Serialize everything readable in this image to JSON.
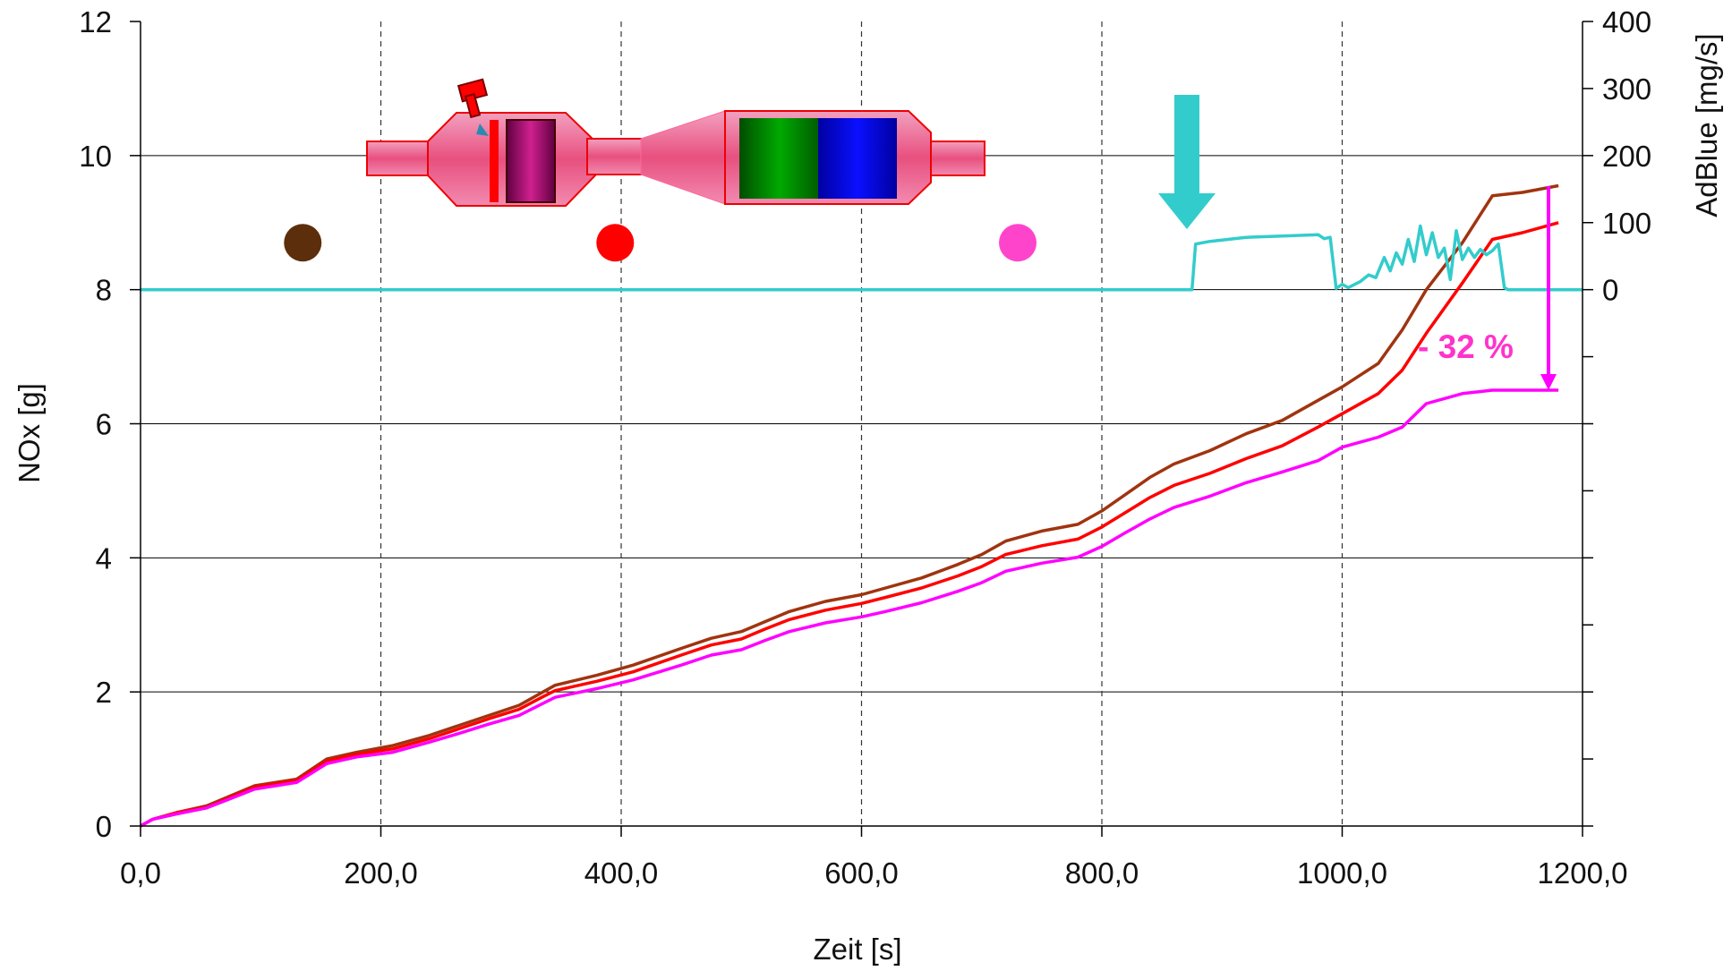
{
  "chart_data": {
    "type": "line",
    "xlabel": "Zeit [s]",
    "ylabel": "NOx [g]",
    "y2label": "AdBlue [mg/s]",
    "xlim": [
      0,
      1200
    ],
    "ylim": [
      0,
      12
    ],
    "y2lim": [
      -800,
      400
    ],
    "x_ticks": [
      "0,0",
      "200,0",
      "400,0",
      "600,0",
      "800,0",
      "1000,0",
      "1200,0"
    ],
    "y_ticks": [
      "0",
      "2",
      "4",
      "6",
      "8",
      "10",
      "12"
    ],
    "y2_ticks": [
      "400",
      "300",
      "200",
      "100",
      "0"
    ],
    "grid": "horizontal solid, vertical dashed",
    "series": [
      {
        "axis": "left",
        "color": "#a0340f",
        "x": [
          0,
          10,
          30,
          55,
          95,
          130,
          155,
          180,
          210,
          240,
          265,
          290,
          315,
          335,
          345,
          380,
          410,
          450,
          475,
          500,
          520,
          540,
          570,
          600,
          620,
          650,
          680,
          700,
          720,
          750,
          780,
          800,
          820,
          840,
          860,
          890,
          920,
          950,
          980,
          1000,
          1030,
          1050,
          1070,
          1100,
          1125,
          1150,
          1180
        ],
        "y": [
          0,
          0.1,
          0.2,
          0.3,
          0.6,
          0.7,
          1.0,
          1.1,
          1.2,
          1.35,
          1.5,
          1.65,
          1.8,
          2.0,
          2.1,
          2.25,
          2.4,
          2.65,
          2.8,
          2.9,
          3.05,
          3.2,
          3.35,
          3.45,
          3.55,
          3.7,
          3.9,
          4.05,
          4.25,
          4.4,
          4.5,
          4.7,
          4.95,
          5.2,
          5.4,
          5.6,
          5.85,
          6.05,
          6.35,
          6.55,
          6.9,
          7.4,
          8.0,
          8.7,
          9.4,
          9.45,
          9.55
        ]
      },
      {
        "axis": "left",
        "color": "#ff0000",
        "x": [
          0,
          10,
          30,
          55,
          95,
          130,
          155,
          180,
          210,
          240,
          265,
          290,
          315,
          335,
          345,
          380,
          410,
          450,
          475,
          500,
          520,
          540,
          570,
          600,
          620,
          650,
          680,
          700,
          720,
          750,
          780,
          800,
          820,
          840,
          860,
          890,
          920,
          950,
          980,
          1000,
          1030,
          1050,
          1070,
          1100,
          1125,
          1150,
          1180
        ],
        "y": [
          0,
          0.1,
          0.2,
          0.28,
          0.58,
          0.68,
          0.97,
          1.07,
          1.15,
          1.3,
          1.45,
          1.6,
          1.74,
          1.93,
          2.02,
          2.16,
          2.3,
          2.55,
          2.7,
          2.79,
          2.94,
          3.08,
          3.22,
          3.32,
          3.41,
          3.55,
          3.73,
          3.87,
          4.05,
          4.18,
          4.28,
          4.46,
          4.68,
          4.9,
          5.08,
          5.26,
          5.48,
          5.67,
          5.95,
          6.15,
          6.45,
          6.8,
          7.35,
          8.1,
          8.75,
          8.85,
          9.0
        ]
      },
      {
        "axis": "left",
        "color": "#ff00ff",
        "x": [
          0,
          10,
          30,
          55,
          95,
          130,
          155,
          180,
          210,
          240,
          265,
          290,
          315,
          335,
          345,
          380,
          410,
          450,
          475,
          500,
          520,
          540,
          570,
          600,
          620,
          650,
          680,
          700,
          720,
          750,
          780,
          800,
          820,
          840,
          860,
          890,
          920,
          950,
          980,
          1000,
          1030,
          1050,
          1070,
          1100,
          1125,
          1150,
          1180
        ],
        "y": [
          0,
          0.1,
          0.18,
          0.27,
          0.55,
          0.65,
          0.93,
          1.03,
          1.1,
          1.25,
          1.38,
          1.52,
          1.65,
          1.83,
          1.92,
          2.05,
          2.18,
          2.4,
          2.55,
          2.63,
          2.77,
          2.9,
          3.03,
          3.12,
          3.2,
          3.33,
          3.5,
          3.63,
          3.8,
          3.92,
          4.01,
          4.17,
          4.38,
          4.58,
          4.75,
          4.92,
          5.12,
          5.28,
          5.45,
          5.65,
          5.8,
          5.95,
          6.3,
          6.45,
          6.5,
          6.5,
          6.5
        ]
      },
      {
        "axis": "right",
        "color": "#33cccc",
        "x": [
          0,
          875,
          878,
          890,
          920,
          950,
          980,
          985,
          990,
          995,
          1000,
          1005,
          1015,
          1022,
          1028,
          1035,
          1040,
          1045,
          1050,
          1055,
          1060,
          1065,
          1070,
          1075,
          1080,
          1085,
          1090,
          1095,
          1100,
          1105,
          1110,
          1115,
          1120,
          1125,
          1130,
          1135,
          1138,
          1145,
          1200
        ],
        "y": [
          0,
          0,
          68,
          72,
          78,
          80,
          82,
          76,
          78,
          2,
          8,
          3,
          12,
          22,
          18,
          48,
          28,
          55,
          38,
          75,
          42,
          95,
          52,
          85,
          48,
          62,
          15,
          88,
          45,
          62,
          48,
          60,
          52,
          58,
          68,
          3,
          0,
          0,
          0
        ]
      }
    ],
    "markers": [
      {
        "color": "#5c2e0b",
        "x": 135,
        "y": 8.7
      },
      {
        "color": "#ff0000",
        "x": 395,
        "y": 8.7
      },
      {
        "color": "#ff44cc",
        "x": 730,
        "y": 8.7
      }
    ],
    "annotation": {
      "text": "- 32 %",
      "color": "#ff33cc"
    }
  }
}
